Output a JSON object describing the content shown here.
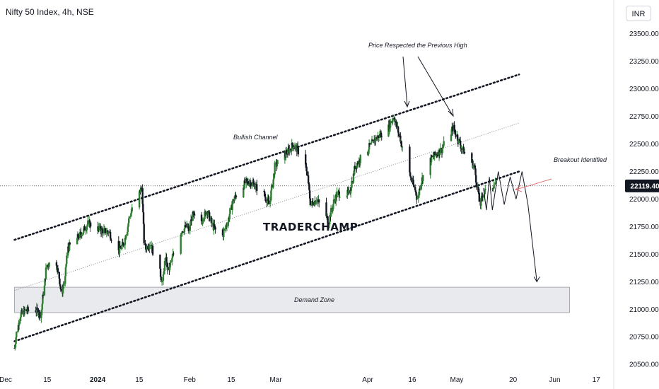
{
  "chart_data": {
    "type": "candlestick",
    "title": "Nifty 50 Index, 4h, NSE",
    "currency": "INR",
    "ylim": [
      20450,
      23780
    ],
    "y_ticks": [
      20500,
      20750,
      21000,
      21250,
      21500,
      21750,
      22000,
      22250,
      22500,
      22750,
      23000,
      23250,
      23500
    ],
    "y_tick_labels": [
      "20500.00",
      "20750.00",
      "21000.00",
      "21250.00",
      "21500.00",
      "21750.00",
      "22000.00",
      "22250.00",
      "22500.00",
      "22750.00",
      "23000.00",
      "23250.00",
      "23500.00"
    ],
    "x_ticks": [
      "Dec",
      "15",
      "2024",
      "15",
      "Feb",
      "15",
      "Mar",
      "Apr",
      "16",
      "May",
      "20",
      "Jun",
      "17"
    ],
    "x_range": [
      "2023-12-01",
      "2024-06-21"
    ],
    "last_price": "22119.40",
    "last_price_value": 22119.4,
    "price_path": [
      [
        "2023-12-04",
        20650
      ],
      [
        "2023-12-06",
        20950
      ],
      [
        "2023-12-08",
        20990
      ],
      [
        "2023-12-11",
        21000
      ],
      [
        "2023-12-13",
        20950
      ],
      [
        "2023-12-15",
        21400
      ],
      [
        "2023-12-18",
        21450
      ],
      [
        "2023-12-20",
        21150
      ],
      [
        "2023-12-21",
        21250
      ],
      [
        "2023-12-22",
        21550
      ],
      [
        "2023-12-27",
        21700
      ],
      [
        "2023-12-29",
        21780
      ],
      [
        "2024-01-02",
        21720
      ],
      [
        "2024-01-05",
        21700
      ],
      [
        "2024-01-08",
        21520
      ],
      [
        "2024-01-10",
        21600
      ],
      [
        "2024-01-12",
        21850
      ],
      [
        "2024-01-15",
        22050
      ],
      [
        "2024-01-16",
        22100
      ],
      [
        "2024-01-17",
        21550
      ],
      [
        "2024-01-19",
        21600
      ],
      [
        "2024-01-23",
        21250
      ],
      [
        "2024-01-24",
        21450
      ],
      [
        "2024-01-25",
        21350
      ],
      [
        "2024-01-29",
        21700
      ],
      [
        "2024-01-31",
        21750
      ],
      [
        "2024-02-01",
        21720
      ],
      [
        "2024-02-02",
        21850
      ],
      [
        "2024-02-05",
        21800
      ],
      [
        "2024-02-07",
        21900
      ],
      [
        "2024-02-09",
        21750
      ],
      [
        "2024-02-12",
        21650
      ],
      [
        "2024-02-14",
        21800
      ],
      [
        "2024-02-16",
        22000
      ],
      [
        "2024-02-20",
        22150
      ],
      [
        "2024-02-22",
        22150
      ],
      [
        "2024-02-26",
        22050
      ],
      [
        "2024-02-28",
        21950
      ],
      [
        "2024-03-01",
        22300
      ],
      [
        "2024-03-04",
        22400
      ],
      [
        "2024-03-06",
        22450
      ],
      [
        "2024-03-07",
        22500
      ],
      [
        "2024-03-11",
        22350
      ],
      [
        "2024-03-13",
        21950
      ],
      [
        "2024-03-15",
        22000
      ],
      [
        "2024-03-19",
        21800
      ],
      [
        "2024-03-21",
        22000
      ],
      [
        "2024-03-22",
        22050
      ],
      [
        "2024-03-26",
        22050
      ],
      [
        "2024-03-28",
        22300
      ],
      [
        "2024-04-01",
        22450
      ],
      [
        "2024-04-04",
        22550
      ],
      [
        "2024-04-08",
        22650
      ],
      [
        "2024-04-10",
        22750
      ],
      [
        "2024-04-12",
        22550
      ],
      [
        "2024-04-15",
        22250
      ],
      [
        "2024-04-18",
        22000
      ],
      [
        "2024-04-19",
        22150
      ],
      [
        "2024-04-22",
        22350
      ],
      [
        "2024-04-24",
        22400
      ],
      [
        "2024-04-26",
        22450
      ],
      [
        "2024-04-29",
        22600
      ],
      [
        "2024-04-30",
        22650
      ],
      [
        "2024-05-03",
        22450
      ],
      [
        "2024-05-07",
        22300
      ],
      [
        "2024-05-09",
        21950
      ],
      [
        "2024-05-10",
        22050
      ],
      [
        "2024-05-13",
        22100
      ],
      [
        "2024-05-14",
        22150
      ]
    ],
    "channel_upper": [
      [
        "2023-12-04",
        21630
      ],
      [
        "2024-05-22",
        23130
      ]
    ],
    "channel_lower": [
      [
        "2023-12-04",
        20710
      ],
      [
        "2024-05-22",
        22250
      ]
    ],
    "channel_mid": [
      [
        "2023-12-04",
        21170
      ],
      [
        "2024-05-22",
        22690
      ]
    ],
    "projection_zigzag": [
      [
        "2024-05-10",
        22100
      ],
      [
        "2024-05-11",
        21900
      ],
      [
        "2024-05-12",
        22200
      ],
      [
        "2024-05-13",
        21900
      ],
      [
        "2024-05-15",
        22250
      ],
      [
        "2024-05-17",
        21950
      ],
      [
        "2024-05-19",
        22200
      ],
      [
        "2024-05-21",
        22000
      ],
      [
        "2024-05-23",
        22250
      ],
      [
        "2024-05-25",
        21950
      ],
      [
        "2024-05-28",
        21250
      ]
    ],
    "demand_zone": {
      "from": "2023-12-04",
      "to": "2024-06-08",
      "y_low": 20970,
      "y_high": 21200
    },
    "reference_level": 22119.4,
    "colors": {
      "up": "#2e7d32",
      "down": "#131722",
      "price_tag": "#131722",
      "zone_fill": "#e9eaed",
      "zone_border": "#9598a1",
      "arrow_pink": "#e57373"
    },
    "annotations": {
      "channel": "Bullish Channel",
      "previous_high": "Price Respected the Previous High",
      "breakout": "Breakout Identified",
      "demand": "Demand Zone"
    },
    "watermark": "TRADERCHAMP"
  }
}
